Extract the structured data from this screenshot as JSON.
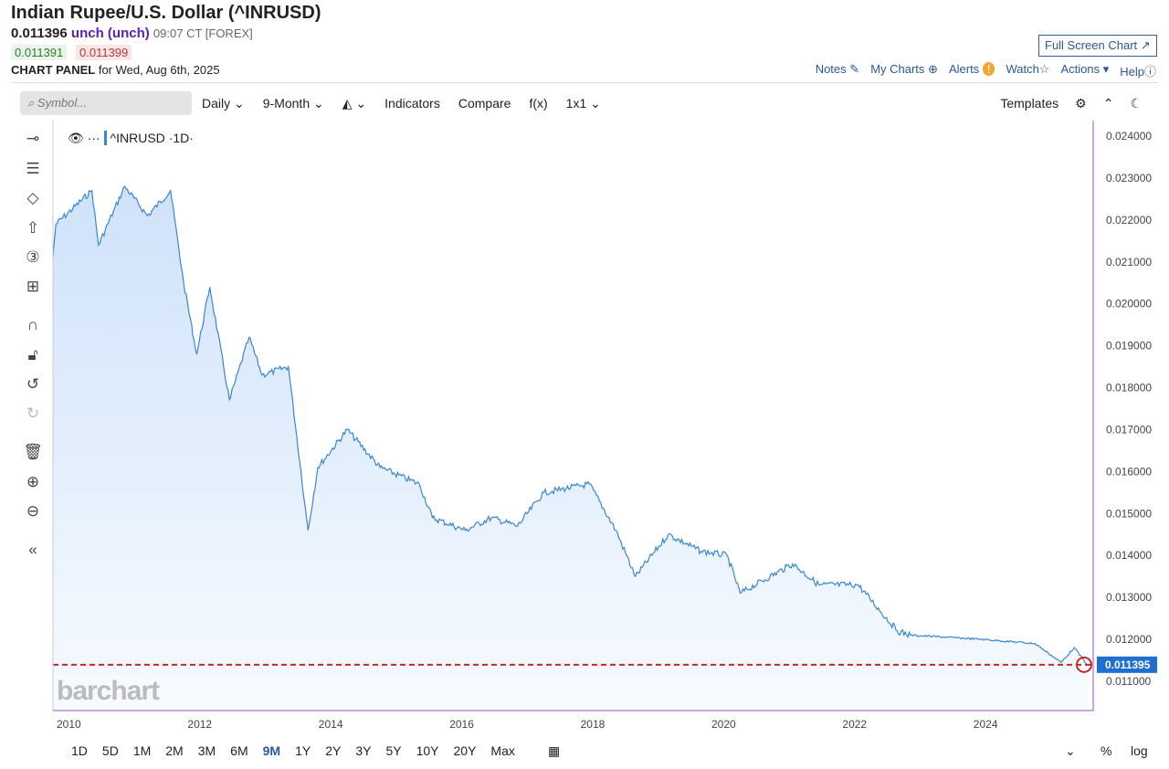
{
  "header": {
    "title": "Indian Rupee/U.S. Dollar (^INRUSD)",
    "last": "0.011396",
    "change": "unch (unch)",
    "time": "09:07 CT [FOREX]",
    "bid": "0.011391",
    "ask": "0.011399",
    "panel_label": "CHART PANEL",
    "panel_date": "for Wed, Aug 6th, 2025",
    "fullscreen": "Full Screen Chart ↗"
  },
  "links": [
    "Notes",
    "My Charts",
    "Alerts",
    "Watch",
    "Actions ▾",
    "Help"
  ],
  "toolbar": {
    "search_placeholder": "Symbol...",
    "interval": "Daily ⌄",
    "period": "9-Month ⌄",
    "chart_type": "⌄",
    "indicators": "Indicators",
    "compare": "Compare",
    "fx": "f(x)",
    "layout": "1x1 ⌄",
    "templates": "Templates"
  },
  "legend": {
    "symbol": "^INRUSD",
    "interval": "·1D·"
  },
  "watermark": "barchart",
  "ranges": [
    "1D",
    "5D",
    "1M",
    "2M",
    "3M",
    "6M",
    "9M",
    "1Y",
    "2Y",
    "3Y",
    "5Y",
    "10Y",
    "20Y",
    "Max"
  ],
  "active_range": "9M",
  "bottom": {
    "pct": "%",
    "log": "log"
  },
  "chart_data": {
    "type": "area",
    "series_color": "#3a86d4",
    "last_price_label": "0.011395",
    "last_line_color": "#c62828",
    "ylim": [
      0.0105,
      0.0242
    ],
    "yticks": [
      "0.024000",
      "0.023000",
      "0.022000",
      "0.021000",
      "0.020000",
      "0.019000",
      "0.018000",
      "0.017000",
      "0.016000",
      "0.015000",
      "0.014000",
      "0.013000",
      "0.012000",
      "0.011000"
    ],
    "xticks": [
      "2010",
      "2012",
      "2014",
      "2016",
      "2018",
      "2020",
      "2022",
      "2024"
    ],
    "x": [
      2009.8,
      2009.85,
      2010.4,
      2010.5,
      2010.9,
      2011.25,
      2011.6,
      2011.8,
      2012.0,
      2012.2,
      2012.5,
      2012.8,
      2013.0,
      2013.4,
      2013.7,
      2013.85,
      2014.3,
      2014.8,
      2015.4,
      2015.6,
      2016.1,
      2016.5,
      2016.9,
      2017.3,
      2018.0,
      2018.4,
      2018.7,
      2019.2,
      2019.7,
      2020.1,
      2020.3,
      2021.1,
      2021.5,
      2022.1,
      2022.7,
      2022.9,
      2024.0,
      2024.8,
      2025.2,
      2025.4,
      2025.6
    ],
    "y": [
      0.0211,
      0.0219,
      0.0227,
      0.0214,
      0.0228,
      0.0221,
      0.0227,
      0.0205,
      0.0188,
      0.0204,
      0.0177,
      0.0192,
      0.0183,
      0.0185,
      0.0146,
      0.0161,
      0.017,
      0.0161,
      0.0157,
      0.0149,
      0.0146,
      0.0149,
      0.0147,
      0.0155,
      0.0157,
      0.0146,
      0.0135,
      0.0145,
      0.0141,
      0.014,
      0.0131,
      0.0138,
      0.0133,
      0.0133,
      0.0122,
      0.0121,
      0.012,
      0.0119,
      0.01145,
      0.0118,
      0.011395
    ]
  }
}
